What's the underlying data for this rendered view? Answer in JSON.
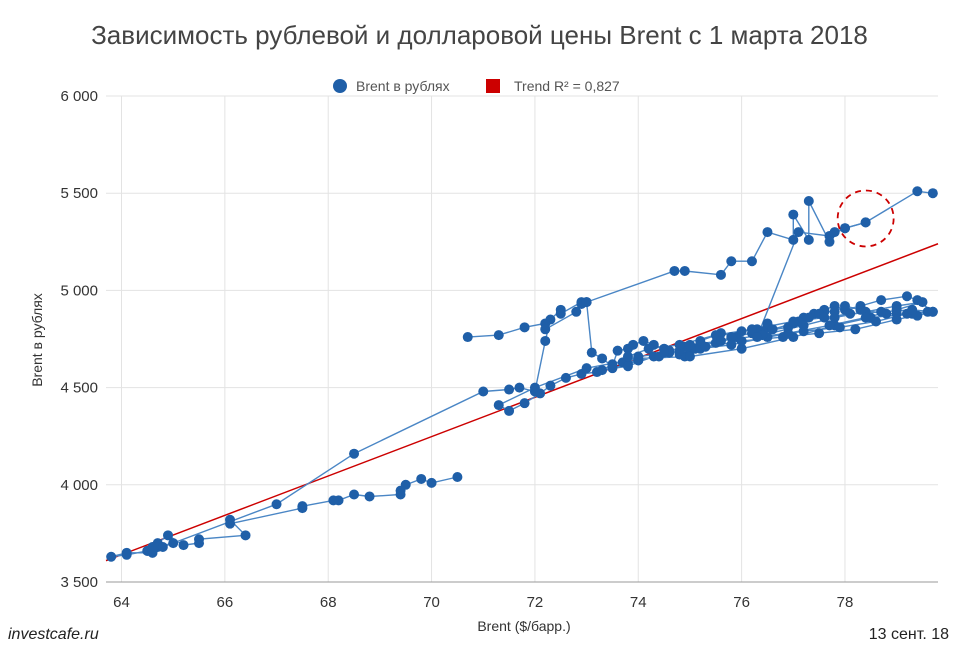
{
  "chart_data": {
    "type": "scatter",
    "title": "Зависимость рублевой и долларовой цены Brent с 1 марта 2018",
    "xlabel": "Brent ($/барр.)",
    "ylabel": "Brent в рублях",
    "xlim": [
      63.7,
      79.8
    ],
    "ylim": [
      3500,
      6000
    ],
    "x_ticks": [
      64,
      66,
      68,
      70,
      72,
      74,
      76,
      78
    ],
    "x_tick_labels": [
      "64",
      "66",
      "68",
      "70",
      "72",
      "74",
      "76",
      "78"
    ],
    "y_ticks": [
      3500,
      4000,
      4500,
      5000,
      5500,
      6000
    ],
    "y_tick_labels": [
      "3 500",
      "4 000",
      "4 500",
      "5 000",
      "5 500",
      "6 000"
    ],
    "grid": true,
    "legend_position": "top-center",
    "series": [
      {
        "name": "Brent в рублях",
        "color": "#1f5fa8",
        "line_color": "#4a86c5",
        "x": [
          70.5,
          70.0,
          69.8,
          69.5,
          69.4,
          69.4,
          68.8,
          68.5,
          68.2,
          68.1,
          67.5,
          67.5,
          66.1,
          66.1,
          66.4,
          65.5,
          65.5,
          65.2,
          64.9,
          64.7,
          64.6,
          64.5,
          64.6,
          64.1,
          63.8,
          64.1,
          64.5,
          64.7,
          65.0,
          64.8,
          64.6,
          67.0,
          68.5,
          71.0,
          71.5,
          71.7,
          72.0,
          72.2,
          72.3,
          72.5,
          72.5,
          72.9,
          73.0,
          73.1,
          73.3,
          73.5,
          73.6,
          73.8,
          73.9,
          74.1,
          74.3,
          74.5,
          74.8,
          74.9,
          75.0,
          75.1,
          75.2,
          75.6,
          75.9,
          76.0,
          76.3,
          76.5,
          76.5,
          76.6,
          77.0,
          77.2,
          77.4,
          77.6,
          77.8,
          78.0,
          78.3,
          78.7,
          79.2,
          79.4,
          79.7,
          79.4,
          79.0,
          78.8,
          78.3,
          78.0,
          77.8,
          77.6,
          77.5,
          77.3,
          77.1,
          76.9,
          76.4,
          76.2,
          75.8,
          75.5,
          75.2,
          74.9,
          74.6,
          74.3,
          74.0,
          73.8,
          73.5,
          73.2,
          72.9,
          72.6,
          72.3,
          72.1,
          71.8,
          71.5,
          71.3,
          72.0,
          73.0,
          74.0,
          75.0,
          76.0,
          77.0,
          77.8,
          78.5,
          79.3,
          79.6,
          79.2,
          78.6,
          77.9,
          77.2,
          76.5,
          75.8,
          75.2,
          74.8,
          74.4,
          74.0,
          73.7,
          73.8,
          74.2,
          74.8,
          75.5,
          76.2,
          77.0,
          77.6,
          78.1,
          78.7,
          79.3,
          79.7,
          79.0,
          78.2,
          77.5,
          76.8,
          76.0,
          75.3,
          74.6,
          74.0,
          73.5,
          73.3,
          73.8,
          74.5,
          75.0,
          75.6,
          76.4,
          77.2,
          77.8,
          78.4,
          79.0,
          79.5,
          79.0,
          78.4,
          77.7,
          76.9,
          76.3,
          77.1,
          77.7,
          78.0,
          78.4
        ],
        "y": [
          4040,
          4010,
          4030,
          4000,
          3970,
          3950,
          3940,
          3950,
          3920,
          3920,
          3890,
          3880,
          3800,
          3820,
          3740,
          3720,
          3700,
          3690,
          3740,
          3700,
          3680,
          3660,
          3650,
          3650,
          3630,
          3640,
          3660,
          3680,
          3700,
          3680,
          3660,
          3900,
          4160,
          4480,
          4490,
          4500,
          4480,
          4740,
          4850,
          4900,
          4880,
          4940,
          4940,
          4680,
          4650,
          4610,
          4690,
          4700,
          4720,
          4740,
          4720,
          4700,
          4670,
          4660,
          4690,
          4700,
          4740,
          4780,
          4760,
          4790,
          4800,
          4810,
          4830,
          4800,
          4830,
          4860,
          4880,
          4900,
          4920,
          4900,
          4920,
          4950,
          4970,
          4950,
          4890,
          4870,
          4880,
          4880,
          4900,
          4920,
          4890,
          4890,
          4880,
          4860,
          4840,
          4810,
          4790,
          4780,
          4760,
          4730,
          4720,
          4710,
          4690,
          4660,
          4640,
          4620,
          4600,
          4580,
          4570,
          4550,
          4510,
          4470,
          4420,
          4380,
          4410,
          4500,
          4600,
          4650,
          4660,
          4700,
          4760,
          4820,
          4860,
          4880,
          4890,
          4880,
          4840,
          4810,
          4790,
          4760,
          4720,
          4700,
          4690,
          4660,
          4640,
          4630,
          4660,
          4700,
          4720,
          4770,
          4800,
          4840,
          4860,
          4880,
          4890,
          4900,
          4890,
          4850,
          4800,
          4780,
          4760,
          4740,
          4710,
          4680,
          4660,
          4620,
          4590,
          4610,
          4680,
          4720,
          4740,
          4770,
          4820,
          4860,
          4890,
          4920,
          4940,
          4900,
          4860,
          4820,
          4780,
          4760,
          5300,
          5280,
          5320,
          5350
        ],
        "points_extra_x": [
          70.7,
          71.3,
          71.8,
          72.2,
          72.2,
          72.8,
          72.9,
          73.0,
          74.7,
          74.9,
          75.6,
          75.8,
          76.2,
          76.5,
          77.0,
          77.0,
          77.3,
          77.3,
          77.7,
          77.8,
          78.0,
          78.4,
          79.4,
          79.7
        ],
        "points_extra_y": [
          4760,
          4770,
          4810,
          4830,
          4800,
          4890,
          4930,
          4940,
          5100,
          5100,
          5080,
          5150,
          5150,
          5300,
          5260,
          5390,
          5260,
          5460,
          5250,
          5300,
          5320,
          5350,
          5510,
          5500
        ]
      },
      {
        "name": "Trend R² = 0,827",
        "color": "#cc0000",
        "x": [
          63.7,
          79.8
        ],
        "y": [
          3610,
          5240
        ]
      }
    ],
    "annotations": [
      {
        "type": "dashed-circle",
        "color": "#cc0000",
        "x": 78.4,
        "y": 5370
      }
    ]
  },
  "footer": {
    "source": "investcafe.ru",
    "date": "13 сент. 18"
  }
}
